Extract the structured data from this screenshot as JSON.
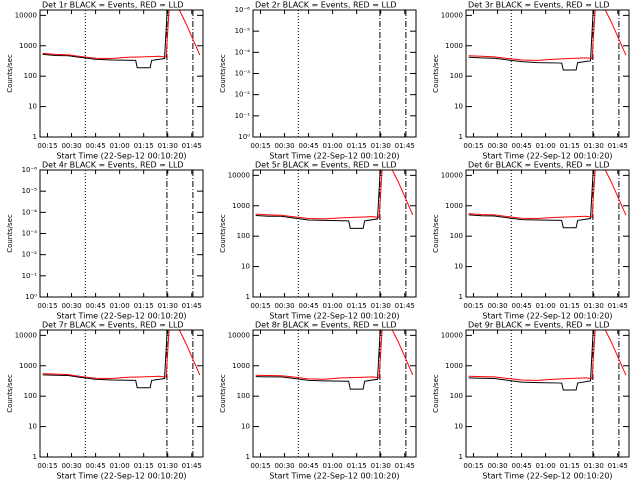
{
  "chart_data": [
    {
      "type": "line",
      "title": "Det 1r BLACK = Events, RED = LLD",
      "ylabel": "Counts/sec",
      "xlabel": "Start Time (22-Sep-12 00:10:20)",
      "log_y": true,
      "xlim": [
        10.33,
        112
      ],
      "xticks": [
        {
          "value": 15,
          "label": "00:15"
        },
        {
          "value": 30,
          "label": "00:30"
        },
        {
          "value": 45,
          "label": "00:45"
        },
        {
          "value": 60,
          "label": "01:00"
        },
        {
          "value": 75,
          "label": "01:15"
        },
        {
          "value": 90,
          "label": "01:30"
        },
        {
          "value": 105,
          "label": "01:45"
        }
      ],
      "ylim": [
        1,
        15000
      ],
      "yticks": [
        1,
        10,
        100,
        1000,
        10000
      ],
      "vlines": [
        {
          "x": 38.6,
          "style": "dotted"
        },
        {
          "x": 89.5,
          "style": "dashdot"
        },
        {
          "x": 105.7,
          "style": "dashdot"
        }
      ],
      "series": [
        {
          "name": "Events",
          "color": "#000000",
          "x": [
            12,
            20,
            28,
            35,
            45,
            55,
            70,
            71,
            79,
            80,
            88,
            89.5,
            91
          ],
          "values": [
            520,
            480,
            470,
            420,
            360,
            340,
            330,
            190,
            190,
            330,
            380,
            10000,
            10000
          ]
        },
        {
          "name": "LLD",
          "color": "#ff0000",
          "x": [
            12,
            20,
            28,
            35,
            45,
            55,
            65,
            75,
            85,
            89,
            91,
            96,
            101,
            110
          ],
          "values": [
            560,
            520,
            500,
            450,
            390,
            380,
            420,
            430,
            450,
            420,
            20000,
            20000,
            6000,
            500
          ]
        }
      ]
    },
    {
      "type": "line",
      "title": "Det 2r BLACK = Events, RED = LLD",
      "ylabel": "Counts/sec",
      "xlabel": "Start Time (22-Sep-12 00:10:20)",
      "log_y": true,
      "xlim": [
        10.33,
        112
      ],
      "xticks": [
        {
          "value": 15,
          "label": "00:15"
        },
        {
          "value": 30,
          "label": "00:30"
        },
        {
          "value": 45,
          "label": "00:45"
        },
        {
          "value": 60,
          "label": "01:00"
        },
        {
          "value": 75,
          "label": "01:15"
        },
        {
          "value": 90,
          "label": "01:30"
        },
        {
          "value": 105,
          "label": "01:45"
        }
      ],
      "ylim": [
        1,
        1e-06
      ],
      "yticks": [
        {
          "value": 1,
          "label": "10⁰"
        },
        {
          "value": 0.1,
          "label": "10⁻¹"
        },
        {
          "value": 0.01,
          "label": "10⁻²"
        },
        {
          "value": 0.001,
          "label": "10⁻³"
        },
        {
          "value": 0.0001,
          "label": "10⁻⁴"
        },
        {
          "value": 1e-05,
          "label": "10⁻⁵"
        },
        {
          "value": 1e-06,
          "label": "10⁻⁶"
        }
      ],
      "vlines": [
        {
          "x": 38.6,
          "style": "dotted"
        },
        {
          "x": 89.5,
          "style": "dashdot"
        },
        {
          "x": 105.7,
          "style": "dashdot"
        }
      ],
      "series": []
    },
    {
      "type": "line",
      "title": "Det 3r BLACK = Events, RED = LLD",
      "ylabel": "Counts/sec",
      "xlabel": "Start Time (22-Sep-12 00:10:20)",
      "log_y": true,
      "xlim": [
        10.33,
        112
      ],
      "xticks": [
        {
          "value": 15,
          "label": "00:15"
        },
        {
          "value": 30,
          "label": "00:30"
        },
        {
          "value": 45,
          "label": "00:45"
        },
        {
          "value": 60,
          "label": "01:00"
        },
        {
          "value": 75,
          "label": "01:15"
        },
        {
          "value": 90,
          "label": "01:30"
        },
        {
          "value": 105,
          "label": "01:45"
        }
      ],
      "ylim": [
        1,
        15000
      ],
      "yticks": [
        1,
        10,
        100,
        1000,
        10000
      ],
      "vlines": [
        {
          "x": 38.6,
          "style": "dotted"
        },
        {
          "x": 89.5,
          "style": "dashdot"
        },
        {
          "x": 105.7,
          "style": "dashdot"
        }
      ],
      "series": [
        {
          "name": "Events",
          "color": "#000000",
          "x": [
            12,
            20,
            28,
            35,
            45,
            55,
            70,
            71,
            79,
            80,
            88,
            89.5,
            91
          ],
          "values": [
            420,
            400,
            390,
            350,
            300,
            280,
            270,
            160,
            160,
            280,
            320,
            10000,
            10000
          ]
        },
        {
          "name": "LLD",
          "color": "#ff0000",
          "x": [
            12,
            20,
            28,
            35,
            45,
            55,
            65,
            75,
            85,
            89,
            91,
            96,
            101,
            110
          ],
          "values": [
            470,
            450,
            430,
            390,
            340,
            330,
            360,
            380,
            400,
            380,
            20000,
            20000,
            6000,
            500
          ]
        }
      ]
    },
    {
      "type": "line",
      "title": "Det 4r BLACK = Events, RED = LLD",
      "ylabel": "Counts/sec",
      "xlabel": "Start Time (22-Sep-12 00:10:20)",
      "log_y": true,
      "xlim": [
        10.33,
        112
      ],
      "xticks": [
        {
          "value": 15,
          "label": "00:15"
        },
        {
          "value": 30,
          "label": "00:30"
        },
        {
          "value": 45,
          "label": "00:45"
        },
        {
          "value": 60,
          "label": "01:00"
        },
        {
          "value": 75,
          "label": "01:15"
        },
        {
          "value": 90,
          "label": "01:30"
        },
        {
          "value": 105,
          "label": "01:45"
        }
      ],
      "ylim": [
        1,
        1e-06
      ],
      "yticks": [
        {
          "value": 1,
          "label": "10⁰"
        },
        {
          "value": 0.1,
          "label": "10⁻¹"
        },
        {
          "value": 0.01,
          "label": "10⁻²"
        },
        {
          "value": 0.001,
          "label": "10⁻³"
        },
        {
          "value": 0.0001,
          "label": "10⁻⁴"
        },
        {
          "value": 1e-05,
          "label": "10⁻⁵"
        },
        {
          "value": 1e-06,
          "label": "10⁻⁶"
        }
      ],
      "vlines": [
        {
          "x": 38.6,
          "style": "dotted"
        },
        {
          "x": 89.5,
          "style": "dashdot"
        },
        {
          "x": 105.7,
          "style": "dashdot"
        }
      ],
      "series": []
    },
    {
      "type": "line",
      "title": "Det 5r BLACK = Events, RED = LLD",
      "ylabel": "Counts/sec",
      "xlabel": "Start Time (22-Sep-12 00:10:20)",
      "log_y": true,
      "xlim": [
        10.33,
        112
      ],
      "xticks": [
        {
          "value": 15,
          "label": "00:15"
        },
        {
          "value": 30,
          "label": "00:30"
        },
        {
          "value": 45,
          "label": "00:45"
        },
        {
          "value": 60,
          "label": "01:00"
        },
        {
          "value": 75,
          "label": "01:15"
        },
        {
          "value": 90,
          "label": "01:30"
        },
        {
          "value": 105,
          "label": "01:45"
        }
      ],
      "ylim": [
        1,
        15000
      ],
      "yticks": [
        1,
        10,
        100,
        1000,
        10000
      ],
      "vlines": [
        {
          "x": 38.6,
          "style": "dotted"
        },
        {
          "x": 89.5,
          "style": "dashdot"
        },
        {
          "x": 105.7,
          "style": "dashdot"
        }
      ],
      "series": [
        {
          "name": "Events",
          "color": "#000000",
          "x": [
            12,
            20,
            28,
            35,
            45,
            55,
            70,
            71,
            79,
            80,
            88,
            89.5,
            91
          ],
          "values": [
            480,
            450,
            450,
            400,
            340,
            330,
            320,
            180,
            180,
            320,
            370,
            10000,
            10000
          ]
        },
        {
          "name": "LLD",
          "color": "#ff0000",
          "x": [
            12,
            20,
            28,
            35,
            45,
            55,
            65,
            75,
            85,
            89,
            91,
            96,
            101,
            110
          ],
          "values": [
            530,
            500,
            490,
            440,
            380,
            370,
            400,
            420,
            440,
            410,
            20000,
            20000,
            6000,
            500
          ]
        }
      ]
    },
    {
      "type": "line",
      "title": "Det 6r BLACK = Events, RED = LLD",
      "ylabel": "Counts/sec",
      "xlabel": "Start Time (22-Sep-12 00:10:20)",
      "log_y": true,
      "xlim": [
        10.33,
        112
      ],
      "xticks": [
        {
          "value": 15,
          "label": "00:15"
        },
        {
          "value": 30,
          "label": "00:30"
        },
        {
          "value": 45,
          "label": "00:45"
        },
        {
          "value": 60,
          "label": "01:00"
        },
        {
          "value": 75,
          "label": "01:15"
        },
        {
          "value": 90,
          "label": "01:30"
        },
        {
          "value": 105,
          "label": "01:45"
        }
      ],
      "ylim": [
        1,
        15000
      ],
      "yticks": [
        1,
        10,
        100,
        1000,
        10000
      ],
      "vlines": [
        {
          "x": 38.6,
          "style": "dotted"
        },
        {
          "x": 89.5,
          "style": "dashdot"
        },
        {
          "x": 105.7,
          "style": "dashdot"
        }
      ],
      "series": [
        {
          "name": "Events",
          "color": "#000000",
          "x": [
            12,
            20,
            28,
            35,
            45,
            55,
            70,
            71,
            79,
            80,
            88,
            89.5,
            91
          ],
          "values": [
            500,
            470,
            460,
            410,
            350,
            340,
            330,
            190,
            190,
            330,
            380,
            10000,
            10000
          ]
        },
        {
          "name": "LLD",
          "color": "#ff0000",
          "x": [
            12,
            20,
            28,
            35,
            45,
            55,
            65,
            75,
            85,
            89,
            91,
            96,
            101,
            110
          ],
          "values": [
            550,
            510,
            500,
            450,
            390,
            380,
            410,
            430,
            450,
            420,
            20000,
            20000,
            6000,
            500
          ]
        }
      ]
    },
    {
      "type": "line",
      "title": "Det 7r BLACK = Events, RED = LLD",
      "ylabel": "Counts/sec",
      "xlabel": "Start Time (22-Sep-12 00:10:20)",
      "log_y": true,
      "xlim": [
        10.33,
        112
      ],
      "xticks": [
        {
          "value": 15,
          "label": "00:15"
        },
        {
          "value": 30,
          "label": "00:30"
        },
        {
          "value": 45,
          "label": "00:45"
        },
        {
          "value": 60,
          "label": "01:00"
        },
        {
          "value": 75,
          "label": "01:15"
        },
        {
          "value": 90,
          "label": "01:30"
        },
        {
          "value": 105,
          "label": "01:45"
        }
      ],
      "ylim": [
        1,
        15000
      ],
      "yticks": [
        1,
        10,
        100,
        1000,
        10000
      ],
      "vlines": [
        {
          "x": 38.6,
          "style": "dotted"
        },
        {
          "x": 89.5,
          "style": "dashdot"
        },
        {
          "x": 105.7,
          "style": "dashdot"
        }
      ],
      "series": [
        {
          "name": "Events",
          "color": "#000000",
          "x": [
            12,
            20,
            28,
            35,
            45,
            55,
            70,
            71,
            79,
            80,
            88,
            89.5,
            91
          ],
          "values": [
            500,
            490,
            480,
            420,
            360,
            340,
            330,
            190,
            190,
            330,
            380,
            10000,
            10000
          ]
        },
        {
          "name": "LLD",
          "color": "#ff0000",
          "x": [
            12,
            20,
            28,
            35,
            45,
            55,
            65,
            75,
            85,
            89,
            91,
            96,
            101,
            110
          ],
          "values": [
            550,
            530,
            510,
            450,
            390,
            380,
            420,
            430,
            450,
            420,
            20000,
            20000,
            6000,
            500
          ]
        }
      ]
    },
    {
      "type": "line",
      "title": "Det 8r BLACK = Events, RED = LLD",
      "ylabel": "Counts/sec",
      "xlabel": "Start Time (22-Sep-12 00:10:20)",
      "log_y": true,
      "xlim": [
        10.33,
        112
      ],
      "xticks": [
        {
          "value": 15,
          "label": "00:15"
        },
        {
          "value": 30,
          "label": "00:30"
        },
        {
          "value": 45,
          "label": "00:45"
        },
        {
          "value": 60,
          "label": "01:00"
        },
        {
          "value": 75,
          "label": "01:15"
        },
        {
          "value": 90,
          "label": "01:30"
        },
        {
          "value": 105,
          "label": "01:45"
        }
      ],
      "ylim": [
        1,
        15000
      ],
      "yticks": [
        1,
        10,
        100,
        1000,
        10000
      ],
      "vlines": [
        {
          "x": 38.6,
          "style": "dotted"
        },
        {
          "x": 89.5,
          "style": "dashdot"
        },
        {
          "x": 105.7,
          "style": "dashdot"
        }
      ],
      "series": [
        {
          "name": "Events",
          "color": "#000000",
          "x": [
            12,
            20,
            28,
            35,
            45,
            55,
            70,
            71,
            79,
            80,
            88,
            89.5,
            91
          ],
          "values": [
            440,
            430,
            430,
            390,
            330,
            320,
            310,
            170,
            170,
            310,
            360,
            10000,
            10000
          ]
        },
        {
          "name": "LLD",
          "color": "#ff0000",
          "x": [
            12,
            20,
            28,
            35,
            45,
            55,
            65,
            75,
            85,
            89,
            91,
            96,
            101,
            110
          ],
          "values": [
            490,
            480,
            470,
            430,
            370,
            360,
            400,
            410,
            430,
            400,
            20000,
            20000,
            6000,
            500
          ]
        }
      ]
    },
    {
      "type": "line",
      "title": "Det 9r BLACK = Events, RED = LLD",
      "ylabel": "Counts/sec",
      "xlabel": "Start Time (22-Sep-12 00:10:20)",
      "log_y": true,
      "xlim": [
        10.33,
        112
      ],
      "xticks": [
        {
          "value": 15,
          "label": "00:15"
        },
        {
          "value": 30,
          "label": "00:30"
        },
        {
          "value": 45,
          "label": "00:45"
        },
        {
          "value": 60,
          "label": "01:00"
        },
        {
          "value": 75,
          "label": "01:15"
        },
        {
          "value": 90,
          "label": "01:30"
        },
        {
          "value": 105,
          "label": "01:45"
        }
      ],
      "ylim": [
        1,
        15000
      ],
      "yticks": [
        1,
        10,
        100,
        1000,
        10000
      ],
      "vlines": [
        {
          "x": 38.6,
          "style": "dotted"
        },
        {
          "x": 89.5,
          "style": "dashdot"
        },
        {
          "x": 105.7,
          "style": "dashdot"
        }
      ],
      "series": [
        {
          "name": "Events",
          "color": "#000000",
          "x": [
            12,
            20,
            28,
            35,
            45,
            55,
            70,
            71,
            79,
            80,
            88,
            89.5,
            91
          ],
          "values": [
            400,
            390,
            380,
            340,
            290,
            280,
            270,
            160,
            160,
            270,
            320,
            10000,
            10000
          ]
        },
        {
          "name": "LLD",
          "color": "#ff0000",
          "x": [
            12,
            20,
            28,
            35,
            45,
            55,
            65,
            75,
            85,
            89,
            91,
            96,
            101,
            110
          ],
          "values": [
            450,
            440,
            430,
            390,
            340,
            330,
            360,
            380,
            400,
            380,
            20000,
            20000,
            6000,
            500
          ]
        }
      ]
    }
  ]
}
